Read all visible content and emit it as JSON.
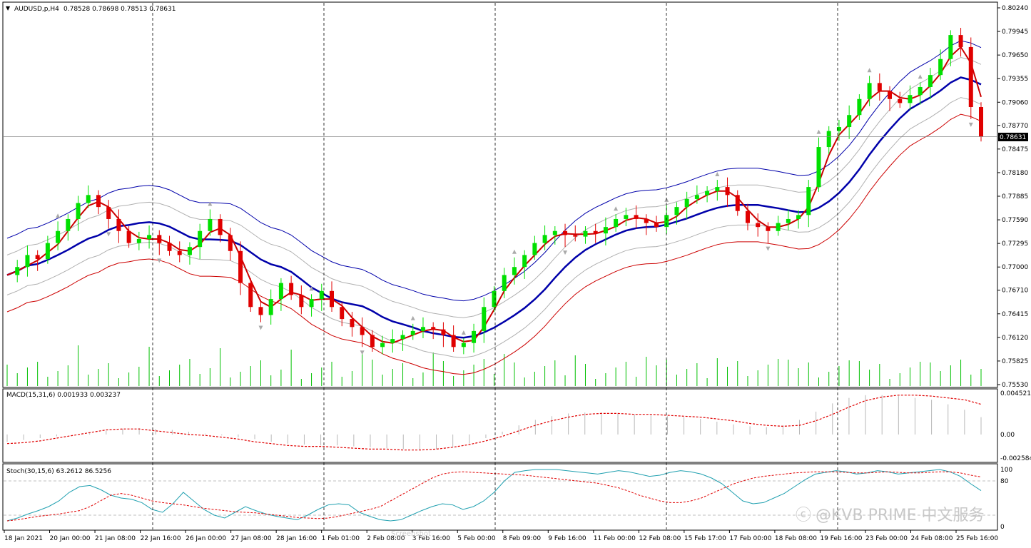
{
  "chart_data": [
    {
      "type": "candlestick",
      "title": "AUDUSD,p,H4",
      "ohlc_header": "0.78528 0.78698 0.78513 0.78631",
      "current_price": "0.78631",
      "y_ticks": [
        "0.80240",
        "0.79945",
        "0.79650",
        "0.79355",
        "0.79060",
        "0.78770",
        "0.78475",
        "0.78180",
        "0.77885",
        "0.77590",
        "0.77295",
        "0.77000",
        "0.76710",
        "0.76415",
        "0.76120",
        "0.75825",
        "0.75530"
      ],
      "ylim": [
        0.7553,
        0.8024
      ],
      "x_ticks": [
        "18 Jan 2021",
        "20 Jan 00:00",
        "21 Jan 08:00",
        "22 Jan 16:00",
        "26 Jan 00:00",
        "27 Jan 08:00",
        "28 Jan 16:00",
        "1 Feb 01:00",
        "2 Feb 08:00",
        "3 Feb 16:00",
        "5 Feb 00:00",
        "8 Feb 09:00",
        "9 Feb 16:00",
        "11 Feb 00:00",
        "12 Feb 08:00",
        "15 Feb 17:00",
        "17 Feb 00:00",
        "18 Feb 08:00",
        "19 Feb 16:00",
        "23 Feb 00:00",
        "24 Feb 08:00",
        "25 Feb 16:00"
      ],
      "close_path": [
        0.769,
        0.77,
        0.7715,
        0.771,
        0.773,
        0.7745,
        0.776,
        0.778,
        0.779,
        0.7775,
        0.776,
        0.7745,
        0.773,
        0.7735,
        0.774,
        0.773,
        0.772,
        0.7715,
        0.7725,
        0.7745,
        0.776,
        0.774,
        0.772,
        0.768,
        0.765,
        0.764,
        0.766,
        0.768,
        0.7665,
        0.765,
        0.766,
        0.767,
        0.765,
        0.7635,
        0.7625,
        0.7615,
        0.76,
        0.7605,
        0.761,
        0.7615,
        0.762,
        0.7625,
        0.7622,
        0.7615,
        0.76,
        0.7605,
        0.762,
        0.765,
        0.767,
        0.769,
        0.77,
        0.7715,
        0.773,
        0.774,
        0.7745,
        0.774,
        0.7738,
        0.7745,
        0.7742,
        0.775,
        0.776,
        0.7765,
        0.776,
        0.7755,
        0.775,
        0.7765,
        0.7775,
        0.7785,
        0.779,
        0.7795,
        0.78,
        0.779,
        0.777,
        0.7755,
        0.775,
        0.7745,
        0.7755,
        0.776,
        0.7765,
        0.78,
        0.785,
        0.787,
        0.7875,
        0.789,
        0.791,
        0.793,
        0.792,
        0.791,
        0.7905,
        0.7915,
        0.7925,
        0.794,
        0.796,
        0.799,
        0.7975,
        0.79,
        0.7863
      ],
      "series": [
        {
          "name": "",
          "color": "#cc0000"
        },
        {
          "name": "",
          "color": "#0000aa"
        },
        {
          "name": "",
          "color": "#0000aa"
        },
        {
          "name": "",
          "color": "#cc0000"
        }
      ],
      "colors": {
        "bull": "#00e000",
        "bear": "#e00000",
        "volume": "#00c000",
        "fractal": "#aaaaaa",
        "dash": "#000000"
      }
    },
    {
      "type": "bar",
      "title": "MACD(15,31,6) 0.001933 0.003237",
      "y_ticks": [
        "0.004521",
        "0.00",
        "-0.002584"
      ],
      "ylim": [
        -0.002584,
        0.004521
      ],
      "values": [
        -0.0008,
        -0.0006,
        -0.0004,
        -0.0002,
        0.0,
        0.0002,
        0.0004,
        0.0006,
        0.0007,
        0.0006,
        0.0005,
        0.0003,
        0.0001,
        -0.0001,
        -0.0003,
        -0.0005,
        -0.0008,
        -0.001,
        -0.0011,
        -0.0012,
        -0.0012,
        -0.0013,
        -0.0014,
        -0.0015,
        -0.0016,
        -0.0017,
        -0.0016,
        -0.0014,
        -0.001,
        -0.0004,
        0.0003,
        0.001,
        0.0016,
        0.002,
        0.0023,
        0.0024,
        0.0024,
        0.0023,
        0.0022,
        0.0021,
        0.002,
        0.0019,
        0.0017,
        0.0014,
        0.0011,
        0.0009,
        0.0008,
        0.001,
        0.0016,
        0.0025,
        0.0034,
        0.004,
        0.0043,
        0.0043,
        0.0042,
        0.004,
        0.0038,
        0.0033,
        0.0027,
        0.0019
      ],
      "signal": [
        -0.001,
        -0.0009,
        -0.0007,
        -0.0004,
        -0.0001,
        0.0002,
        0.0005,
        0.0006,
        0.0006,
        0.0004,
        0.0002,
        0.0,
        -0.0001,
        -0.0003,
        -0.0005,
        -0.0008,
        -0.001,
        -0.0012,
        -0.0013,
        -0.0013,
        -0.0014,
        -0.0015,
        -0.0016,
        -0.0016,
        -0.0017,
        -0.0017,
        -0.0016,
        -0.0014,
        -0.0011,
        -0.0007,
        -0.0002,
        0.0004,
        0.001,
        0.0015,
        0.0019,
        0.0022,
        0.0023,
        0.0023,
        0.0022,
        0.0022,
        0.0021,
        0.002,
        0.0019,
        0.0017,
        0.0015,
        0.0012,
        0.001,
        0.0009,
        0.001,
        0.0015,
        0.0022,
        0.003,
        0.0037,
        0.0041,
        0.0043,
        0.0043,
        0.0042,
        0.004,
        0.0038,
        0.0033
      ]
    },
    {
      "type": "line",
      "title": "Stoch(30,15,6) 63.2612 86.5256",
      "y_ticks": [
        "100",
        "80",
        "0"
      ],
      "ylim": [
        0,
        100
      ],
      "main": [
        10,
        15,
        22,
        28,
        35,
        45,
        60,
        70,
        72,
        65,
        55,
        50,
        48,
        42,
        30,
        25,
        40,
        60,
        45,
        30,
        20,
        15,
        25,
        35,
        28,
        22,
        18,
        15,
        12,
        20,
        30,
        38,
        40,
        38,
        25,
        18,
        12,
        10,
        12,
        20,
        28,
        35,
        40,
        38,
        30,
        35,
        45,
        60,
        80,
        95,
        98,
        100,
        100,
        100,
        98,
        96,
        94,
        92,
        95,
        98,
        96,
        92,
        88,
        90,
        95,
        98,
        96,
        92,
        85,
        75,
        60,
        45,
        40,
        42,
        50,
        58,
        70,
        82,
        92,
        95,
        98,
        96,
        92,
        94,
        98,
        96,
        92,
        94,
        96,
        98,
        100,
        96,
        88,
        75,
        63
      ],
      "signal": [
        10,
        12,
        15,
        18,
        20,
        22,
        25,
        28,
        35,
        45,
        55,
        58,
        55,
        50,
        45,
        42,
        40,
        38,
        35,
        32,
        30,
        28,
        26,
        25,
        24,
        22,
        20,
        18,
        16,
        15,
        14,
        15,
        18,
        22,
        26,
        30,
        35,
        45,
        55,
        65,
        75,
        85,
        92,
        95,
        96,
        95,
        94,
        93,
        92,
        91,
        90,
        88,
        86,
        84,
        82,
        80,
        78,
        76,
        72,
        68,
        62,
        55,
        50,
        45,
        42,
        42,
        45,
        50,
        58,
        66,
        74,
        80,
        85,
        88,
        90,
        92,
        94,
        95,
        96,
        96,
        96,
        95,
        94,
        94,
        95,
        96,
        95,
        94,
        94,
        95,
        96,
        96,
        94,
        90,
        87
      ]
    }
  ],
  "watermark": {
    "text": "@KVB PRIME 中文服务",
    "sub": "Screenshot"
  }
}
